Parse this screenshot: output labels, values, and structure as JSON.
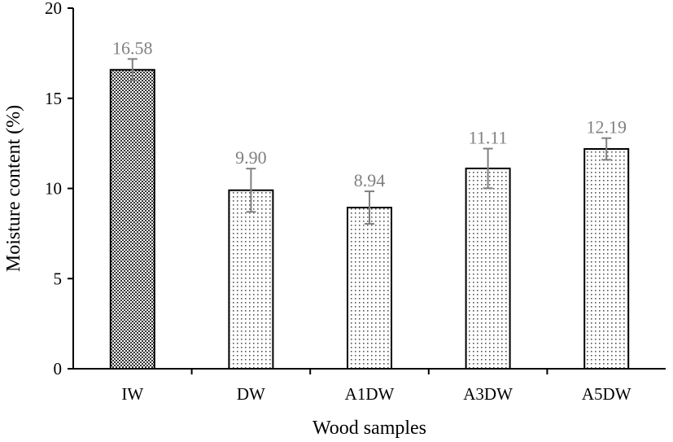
{
  "chart_data": {
    "type": "bar",
    "categories": [
      "IW",
      "DW",
      "A1DW",
      "A3DW",
      "A5DW"
    ],
    "values": [
      16.58,
      9.9,
      8.94,
      11.11,
      12.19
    ],
    "value_labels": [
      "16.58",
      "9.90",
      "8.94",
      "11.11",
      "12.19"
    ],
    "error": [
      0.6,
      1.2,
      0.9,
      1.1,
      0.6
    ],
    "xlabel": "Wood samples",
    "ylabel": "Moisture content (%)",
    "ylim": [
      0,
      20
    ],
    "yticks": [
      "0",
      "5",
      "10",
      "15",
      "20"
    ],
    "grid": false,
    "legend": "none",
    "bar_patterns": [
      "dense-dots",
      "light-dots",
      "light-dots",
      "light-dots",
      "light-dots"
    ],
    "colors": {
      "bar_stroke": "#000000",
      "error_bar": "#808080",
      "data_label": "#808080"
    }
  }
}
